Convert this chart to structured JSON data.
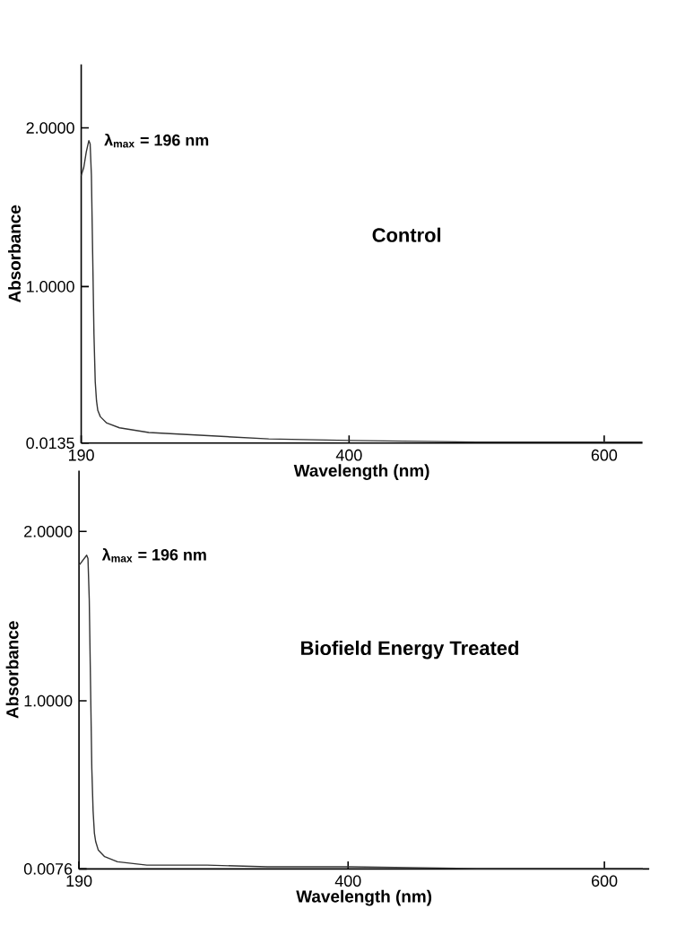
{
  "chart_data": [
    {
      "type": "line",
      "xlabel": "Wavelength (nm)",
      "ylabel": "Absorbance",
      "color": "#333333",
      "annotations": [
        {
          "text": "λ$_{max}$ = 196 nm",
          "x": 196,
          "y": 1.92
        },
        "Control"
      ],
      "x": [
        190,
        192,
        194,
        196,
        197,
        198,
        199,
        200,
        201,
        202,
        203,
        205,
        210,
        220,
        243,
        290,
        337,
        400,
        500,
        630
      ],
      "values": [
        1.7,
        1.75,
        1.85,
        1.92,
        1.9,
        1.7,
        1.2,
        0.7,
        0.4,
        0.28,
        0.22,
        0.18,
        0.14,
        0.11,
        0.08,
        0.06,
        0.04,
        0.03,
        0.02,
        0.02
      ],
      "xlim": [
        190,
        630
      ],
      "ylim": [
        0.0135,
        2.4
      ],
      "xticks": [
        190,
        400,
        600
      ],
      "yticks": [
        {
          "value": 0.0135,
          "label": "0.0135"
        },
        {
          "value": 1,
          "label": "1.0000"
        },
        {
          "value": 2,
          "label": "2.0000"
        }
      ],
      "grid": false
    },
    {
      "type": "line",
      "xlabel": "Wavelength (nm)",
      "ylabel": "Absorbance",
      "color": "#333333",
      "annotations": [
        {
          "text": "λ$_{max}$ = 196 nm",
          "x": 196,
          "y": 1.86
        },
        "Biofield Energy Treated"
      ],
      "x": [
        190,
        192,
        194,
        196,
        197,
        198,
        199,
        200,
        201,
        202,
        203,
        205,
        210,
        220,
        243,
        290,
        337,
        400,
        500,
        630
      ],
      "values": [
        1.8,
        1.82,
        1.84,
        1.86,
        1.84,
        1.6,
        1.1,
        0.6,
        0.35,
        0.22,
        0.17,
        0.12,
        0.08,
        0.05,
        0.03,
        0.03,
        0.02,
        0.02,
        0.01,
        0.01
      ],
      "xlim": [
        190,
        635
      ],
      "ylim": [
        0.0076,
        2.36
      ],
      "xticks": [
        190,
        400,
        600
      ],
      "yticks": [
        {
          "value": 0.0076,
          "label": "0.0076"
        },
        {
          "value": 1,
          "label": "1.0000"
        },
        {
          "value": 2,
          "label": "2.0000"
        }
      ],
      "grid": false
    }
  ]
}
